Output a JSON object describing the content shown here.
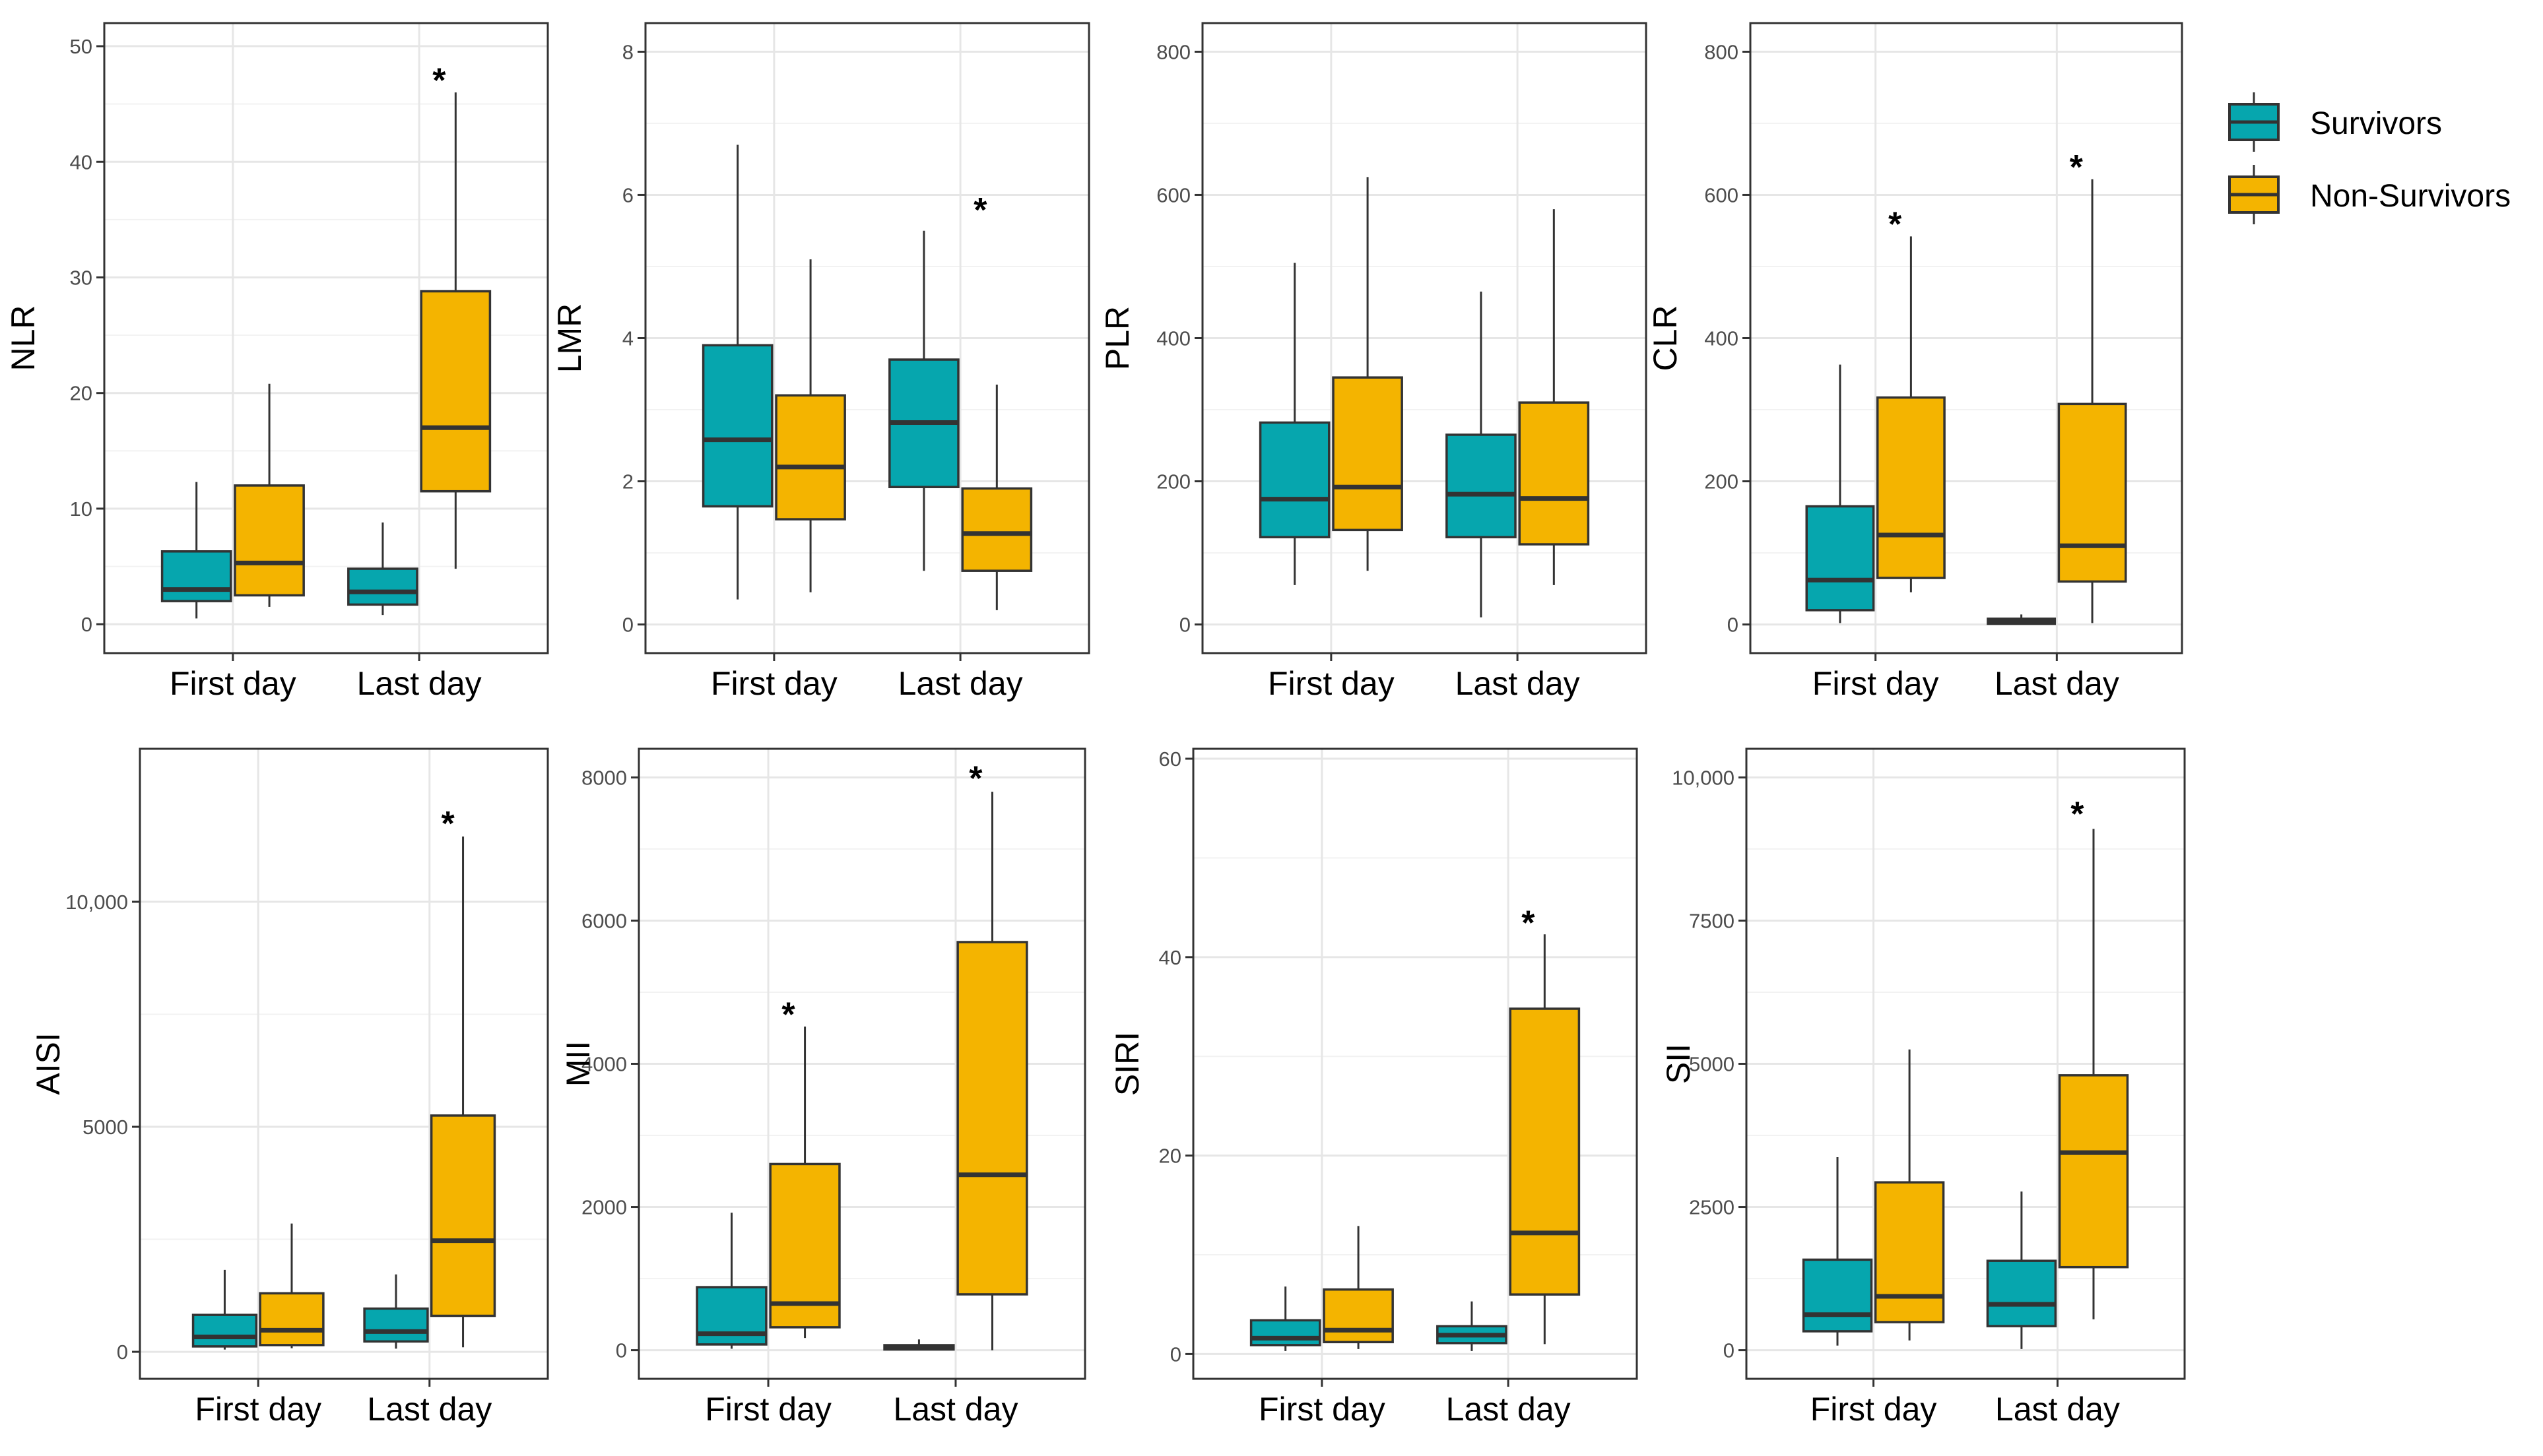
{
  "legend": {
    "items": [
      {
        "label": "Survivors",
        "color": "#06A6AE"
      },
      {
        "label": "Non-Survivors",
        "color": "#F4B400"
      }
    ]
  },
  "chart_data": [
    {
      "type": "box",
      "ylabel": "NLR",
      "ylim": [
        -2.5,
        52
      ],
      "yticks": [
        0,
        10,
        20,
        30,
        40,
        50
      ],
      "ytick_labels": [
        "0",
        "10",
        "20",
        "30",
        "40",
        "50"
      ],
      "categories": [
        "First day",
        "Last day"
      ],
      "series": [
        {
          "name": "Survivors",
          "boxes": [
            {
              "min": 0.5,
              "q1": 2,
              "median": 3,
              "q3": 6.3,
              "max": 12.3
            },
            {
              "min": 0.8,
              "q1": 1.7,
              "median": 2.8,
              "q3": 4.8,
              "max": 8.8
            }
          ]
        },
        {
          "name": "Non-Survivors",
          "boxes": [
            {
              "min": 1.5,
              "q1": 2.5,
              "median": 5.3,
              "q3": 12,
              "max": 20.8
            },
            {
              "min": 4.8,
              "q1": 11.5,
              "median": 17,
              "q3": 28.8,
              "max": 46
            }
          ]
        }
      ],
      "significance": [
        {
          "category": "Last day",
          "label": "*",
          "y": 46.5
        }
      ]
    },
    {
      "type": "box",
      "ylabel": "LMR",
      "ylim": [
        -0.4,
        8.4
      ],
      "yticks": [
        0,
        2,
        4,
        6,
        8
      ],
      "ytick_labels": [
        "0",
        "2",
        "4",
        "6",
        "8"
      ],
      "categories": [
        "First day",
        "Last day"
      ],
      "series": [
        {
          "name": "Survivors",
          "boxes": [
            {
              "min": 0.35,
              "q1": 1.65,
              "median": 2.58,
              "q3": 3.9,
              "max": 6.7
            },
            {
              "min": 0.75,
              "q1": 1.92,
              "median": 2.82,
              "q3": 3.7,
              "max": 5.5
            }
          ]
        },
        {
          "name": "Non-Survivors",
          "boxes": [
            {
              "min": 0.45,
              "q1": 1.47,
              "median": 2.2,
              "q3": 3.2,
              "max": 5.1
            },
            {
              "min": 0.2,
              "q1": 0.75,
              "median": 1.27,
              "q3": 1.9,
              "max": 3.35
            }
          ]
        }
      ],
      "significance": [
        {
          "category": "Last day",
          "label": "*",
          "y": 5.7
        }
      ]
    },
    {
      "type": "box",
      "ylabel": "PLR",
      "ylim": [
        -40,
        840
      ],
      "yticks": [
        0,
        200,
        400,
        600,
        800
      ],
      "ytick_labels": [
        "0",
        "200",
        "400",
        "600",
        "800"
      ],
      "categories": [
        "First day",
        "Last day"
      ],
      "series": [
        {
          "name": "Survivors",
          "boxes": [
            {
              "min": 55,
              "q1": 122,
              "median": 175,
              "q3": 282,
              "max": 505
            },
            {
              "min": 10,
              "q1": 122,
              "median": 182,
              "q3": 265,
              "max": 465
            }
          ]
        },
        {
          "name": "Non-Survivors",
          "boxes": [
            {
              "min": 75,
              "q1": 132,
              "median": 192,
              "q3": 345,
              "max": 625
            },
            {
              "min": 55,
              "q1": 112,
              "median": 176,
              "q3": 310,
              "max": 580
            }
          ]
        }
      ],
      "significance": []
    },
    {
      "type": "box",
      "ylabel": "CLR",
      "ylim": [
        -40,
        840
      ],
      "yticks": [
        0,
        200,
        400,
        600,
        800
      ],
      "ytick_labels": [
        "0",
        "200",
        "400",
        "600",
        "800"
      ],
      "categories": [
        "First day",
        "Last day"
      ],
      "series": [
        {
          "name": "Survivors",
          "boxes": [
            {
              "min": 2,
              "q1": 20,
              "median": 62,
              "q3": 165,
              "max": 363
            },
            {
              "min": 0,
              "q1": 1,
              "median": 4,
              "q3": 8,
              "max": 14
            }
          ]
        },
        {
          "name": "Non-Survivors",
          "boxes": [
            {
              "min": 45,
              "q1": 65,
              "median": 125,
              "q3": 317,
              "max": 542
            },
            {
              "min": 2,
              "q1": 60,
              "median": 110,
              "q3": 308,
              "max": 622
            }
          ]
        }
      ],
      "significance": [
        {
          "category": "First day",
          "label": "*",
          "y": 550
        },
        {
          "category": "Last day",
          "label": "*",
          "y": 630
        }
      ]
    },
    {
      "type": "box",
      "ylabel": "AISI",
      "ylim": [
        -600,
        13400
      ],
      "yticks": [
        0,
        5000,
        10000
      ],
      "ytick_labels": [
        "0",
        "5000",
        "10,000"
      ],
      "categories": [
        "First day",
        "Last day"
      ],
      "series": [
        {
          "name": "Survivors",
          "boxes": [
            {
              "min": 50,
              "q1": 120,
              "median": 330,
              "q3": 820,
              "max": 1820
            },
            {
              "min": 70,
              "q1": 230,
              "median": 450,
              "q3": 960,
              "max": 1720
            }
          ]
        },
        {
          "name": "Non-Survivors",
          "boxes": [
            {
              "min": 80,
              "q1": 150,
              "median": 480,
              "q3": 1300,
              "max": 2850
            },
            {
              "min": 100,
              "q1": 800,
              "median": 2470,
              "q3": 5250,
              "max": 11450
            }
          ]
        }
      ],
      "significance": [
        {
          "category": "Last day",
          "label": "*",
          "y": 11600
        }
      ]
    },
    {
      "type": "box",
      "ylabel": "MII",
      "ylim": [
        -400,
        8400
      ],
      "yticks": [
        0,
        2000,
        4000,
        6000,
        8000
      ],
      "ytick_labels": [
        "0",
        "2000",
        "4000",
        "6000",
        "8000"
      ],
      "categories": [
        "First day",
        "Last day"
      ],
      "series": [
        {
          "name": "Survivors",
          "boxes": [
            {
              "min": 20,
              "q1": 80,
              "median": 230,
              "q3": 880,
              "max": 1920
            },
            {
              "min": 0,
              "q1": 10,
              "median": 30,
              "q3": 70,
              "max": 150
            }
          ]
        },
        {
          "name": "Non-Survivors",
          "boxes": [
            {
              "min": 170,
              "q1": 320,
              "median": 650,
              "q3": 2600,
              "max": 4520
            },
            {
              "min": 0,
              "q1": 780,
              "median": 2450,
              "q3": 5700,
              "max": 7800
            }
          ]
        }
      ],
      "significance": [
        {
          "category": "First day",
          "label": "*",
          "y": 4600
        },
        {
          "category": "Last day",
          "label": "*",
          "y": 7900
        }
      ]
    },
    {
      "type": "box",
      "ylabel": "SIRI",
      "ylim": [
        -2.5,
        61
      ],
      "yticks": [
        0,
        20,
        40,
        60
      ],
      "ytick_labels": [
        "0",
        "20",
        "40",
        "60"
      ],
      "categories": [
        "First day",
        "Last day"
      ],
      "series": [
        {
          "name": "Survivors",
          "boxes": [
            {
              "min": 0.3,
              "q1": 0.9,
              "median": 1.6,
              "q3": 3.4,
              "max": 6.8
            },
            {
              "min": 0.3,
              "q1": 1.1,
              "median": 1.9,
              "q3": 2.8,
              "max": 5.3
            }
          ]
        },
        {
          "name": "Non-Survivors",
          "boxes": [
            {
              "min": 0.5,
              "q1": 1.2,
              "median": 2.4,
              "q3": 6.5,
              "max": 12.9
            },
            {
              "min": 1,
              "q1": 6,
              "median": 12.2,
              "q3": 34.8,
              "max": 42.3
            }
          ]
        }
      ],
      "significance": [
        {
          "category": "Last day",
          "label": "*",
          "y": 42.8
        }
      ]
    },
    {
      "type": "box",
      "ylabel": "SII",
      "ylim": [
        -500,
        10500
      ],
      "yticks": [
        0,
        2500,
        5000,
        7500,
        10000
      ],
      "ytick_labels": [
        "0",
        "2500",
        "5000",
        "7500",
        "10,000"
      ],
      "categories": [
        "First day",
        "Last day"
      ],
      "series": [
        {
          "name": "Survivors",
          "boxes": [
            {
              "min": 80,
              "q1": 330,
              "median": 620,
              "q3": 1580,
              "max": 3370
            },
            {
              "min": 20,
              "q1": 420,
              "median": 800,
              "q3": 1560,
              "max": 2770
            }
          ]
        },
        {
          "name": "Non-Survivors",
          "boxes": [
            {
              "min": 170,
              "q1": 490,
              "median": 940,
              "q3": 2930,
              "max": 5250
            },
            {
              "min": 540,
              "q1": 1450,
              "median": 3450,
              "q3": 4800,
              "max": 9100
            }
          ]
        }
      ],
      "significance": [
        {
          "category": "Last day",
          "label": "*",
          "y": 9250
        }
      ]
    }
  ]
}
